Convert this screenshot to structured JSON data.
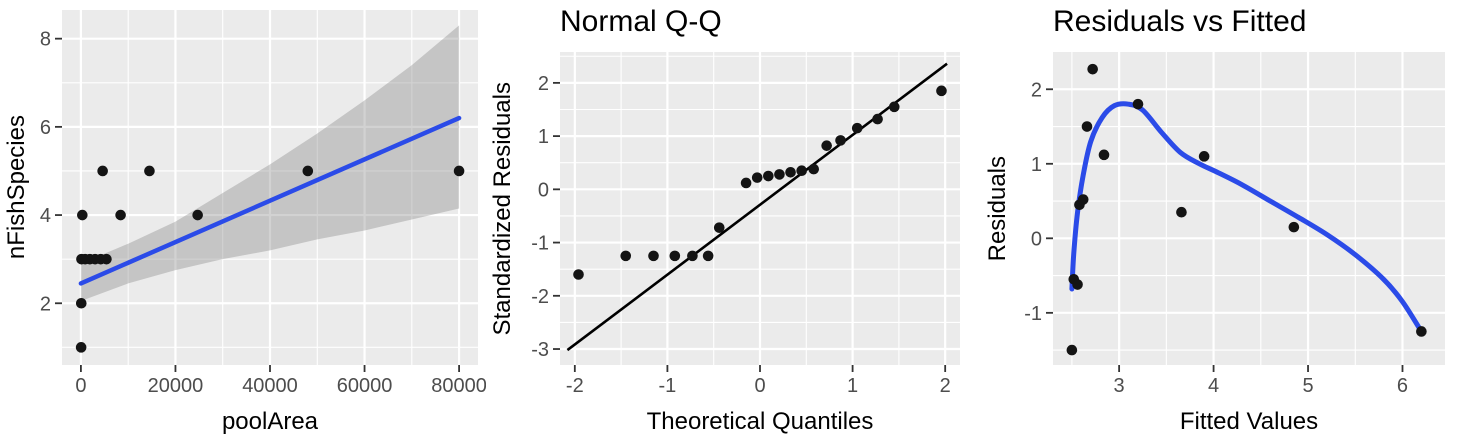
{
  "theme": {
    "panel_bg": "#EBEBEB",
    "grid_major": "#FFFFFF",
    "grid_minor": "#FFFFFF",
    "tick_label_color": "#4D4D4D",
    "tick_mark_color": "#333333",
    "title_color": "#000000",
    "point_color": "#141414",
    "smooth_blue": "#2B4BE8",
    "ribbon_gray": "#7F7F7F",
    "ref_line_black": "#000000"
  },
  "chart_data": [
    {
      "id": "fish-species-vs-poolarea",
      "type": "scatter",
      "title": "",
      "xlabel": "poolArea",
      "ylabel": "nFishSpecies",
      "xlim": [
        -4000,
        84000
      ],
      "ylim": [
        0.6,
        8.65
      ],
      "xticks": [
        0,
        20000,
        40000,
        60000,
        80000
      ],
      "xtick_labels": [
        "0",
        "20000",
        "40000",
        "60000",
        "80000"
      ],
      "yticks": [
        2,
        4,
        6,
        8
      ],
      "ytick_labels": [
        "2",
        "4",
        "6",
        "8"
      ],
      "grid": true,
      "legend": "none",
      "points": [
        [
          50,
          1
        ],
        [
          80,
          2
        ],
        [
          120,
          3
        ],
        [
          900,
          3
        ],
        [
          1900,
          3
        ],
        [
          3000,
          3
        ],
        [
          4200,
          3
        ],
        [
          5400,
          3
        ],
        [
          300,
          4
        ],
        [
          8400,
          4
        ],
        [
          24700,
          4
        ],
        [
          4600,
          5
        ],
        [
          14500,
          5
        ],
        [
          48000,
          5
        ],
        [
          80000,
          5
        ]
      ],
      "smooth": {
        "x": [
          0,
          80000
        ],
        "y": [
          2.45,
          6.2
        ]
      },
      "ribbon": {
        "x": [
          0,
          10000,
          20000,
          30000,
          40000,
          50000,
          60000,
          70000,
          80000
        ],
        "lower": [
          2.05,
          2.45,
          2.75,
          3.0,
          3.2,
          3.45,
          3.65,
          3.9,
          4.15
        ],
        "upper": [
          2.9,
          3.35,
          3.85,
          4.5,
          5.15,
          5.85,
          6.6,
          7.4,
          8.3
        ]
      }
    },
    {
      "id": "normal-qq",
      "type": "scatter",
      "title": "Normal Q-Q",
      "xlabel": "Theoretical Quantiles",
      "ylabel": "Standardized Residuals",
      "xlim": [
        -2.16,
        2.16
      ],
      "ylim": [
        -3.3,
        2.58
      ],
      "xticks": [
        -2,
        -1,
        0,
        1,
        2
      ],
      "xtick_labels": [
        "-2",
        "-1",
        "0",
        "1",
        "2"
      ],
      "yticks": [
        -3,
        -2,
        -1,
        0,
        1,
        2
      ],
      "ytick_labels": [
        "-3",
        "-2",
        "-1",
        "0",
        "1",
        "2"
      ],
      "grid": true,
      "legend": "none",
      "points": [
        [
          -1.96,
          -1.6
        ],
        [
          -1.45,
          -1.25
        ],
        [
          -1.15,
          -1.25
        ],
        [
          -0.92,
          -1.25
        ],
        [
          -0.73,
          -1.25
        ],
        [
          -0.56,
          -1.25
        ],
        [
          -0.44,
          -0.72
        ],
        [
          -0.15,
          0.12
        ],
        [
          -0.03,
          0.22
        ],
        [
          0.09,
          0.25
        ],
        [
          0.21,
          0.28
        ],
        [
          0.33,
          0.32
        ],
        [
          0.45,
          0.35
        ],
        [
          0.58,
          0.38
        ],
        [
          0.72,
          0.82
        ],
        [
          0.87,
          0.92
        ],
        [
          1.05,
          1.15
        ],
        [
          1.27,
          1.32
        ],
        [
          1.45,
          1.55
        ],
        [
          1.96,
          1.85
        ]
      ],
      "ref_line": {
        "x": [
          -2.08,
          2.02
        ],
        "y": [
          -3.02,
          2.36
        ]
      }
    },
    {
      "id": "residuals-vs-fitted",
      "type": "scatter",
      "title": "Residuals vs Fitted",
      "xlabel": "Fitted Values",
      "ylabel": "Residuals",
      "xlim": [
        2.3,
        6.45
      ],
      "ylim": [
        -1.7,
        2.5
      ],
      "xticks": [
        3,
        4,
        5,
        6
      ],
      "xtick_labels": [
        "3",
        "4",
        "5",
        "6"
      ],
      "yticks": [
        -1,
        0,
        1,
        2
      ],
      "ytick_labels": [
        "-1",
        "0",
        "1",
        "2"
      ],
      "grid": true,
      "legend": "none",
      "points": [
        [
          2.5,
          -1.5
        ],
        [
          2.52,
          -0.55
        ],
        [
          2.56,
          -0.62
        ],
        [
          2.58,
          0.45
        ],
        [
          2.62,
          0.52
        ],
        [
          2.66,
          1.5
        ],
        [
          2.72,
          2.27
        ],
        [
          2.84,
          1.12
        ],
        [
          3.2,
          1.8
        ],
        [
          3.66,
          0.35
        ],
        [
          3.9,
          1.1
        ],
        [
          4.85,
          0.15
        ],
        [
          6.2,
          -1.25
        ]
      ],
      "smooth": {
        "x": [
          2.5,
          2.52,
          2.56,
          2.62,
          2.7,
          2.82,
          2.95,
          3.1,
          3.25,
          3.45,
          3.65,
          3.85,
          4.05,
          4.3,
          4.6,
          4.9,
          5.2,
          5.5,
          5.8,
          6.0,
          6.2
        ],
        "y": [
          -0.68,
          -0.2,
          0.35,
          0.85,
          1.3,
          1.62,
          1.78,
          1.8,
          1.72,
          1.42,
          1.15,
          1.0,
          0.88,
          0.72,
          0.5,
          0.28,
          0.05,
          -0.22,
          -0.55,
          -0.85,
          -1.25
        ]
      }
    }
  ]
}
